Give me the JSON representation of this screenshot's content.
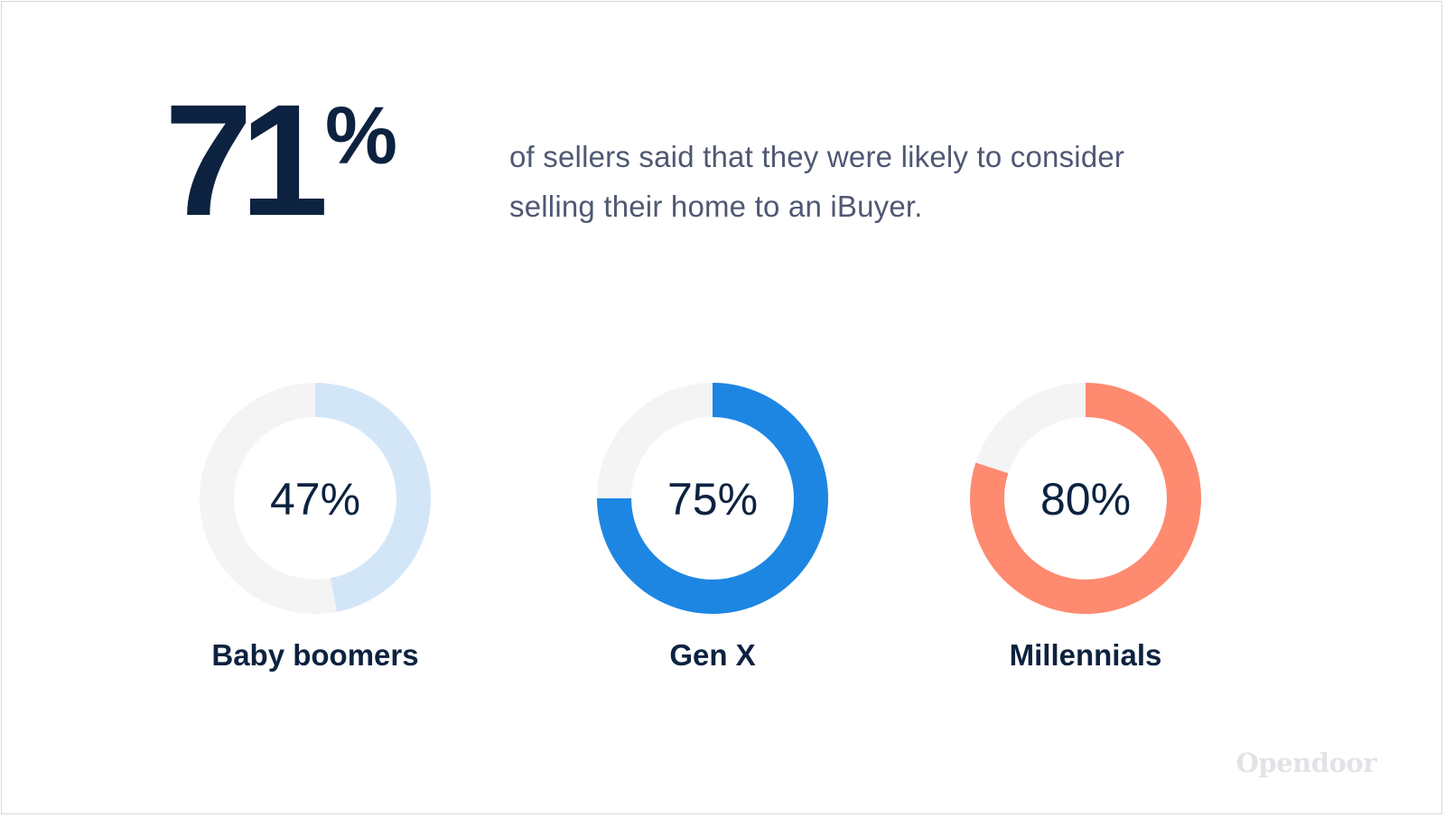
{
  "headline": {
    "number": "71",
    "percent_sign": "%",
    "description": "of sellers said that they were likely to consider selling their home to an iBuyer."
  },
  "brand": {
    "name": "Opendoor"
  },
  "colors": {
    "text_dark": "#0c2240",
    "text_muted": "#4f5872",
    "track": "#f4f4f5",
    "baby_boomers": "#d3e6f8",
    "gen_x": "#1d86e3",
    "millennials": "#fe8a70"
  },
  "chart_data": {
    "type": "pie",
    "subtype": "donut",
    "title": "",
    "series": [
      {
        "name": "Baby boomers",
        "value": 47,
        "label": "47%",
        "color": "#d3e6f8"
      },
      {
        "name": "Gen X",
        "value": 75,
        "label": "75%",
        "color": "#1d86e3"
      },
      {
        "name": "Millennials",
        "value": 80,
        "label": "80%",
        "color": "#fe8a70"
      }
    ],
    "max": 100
  }
}
